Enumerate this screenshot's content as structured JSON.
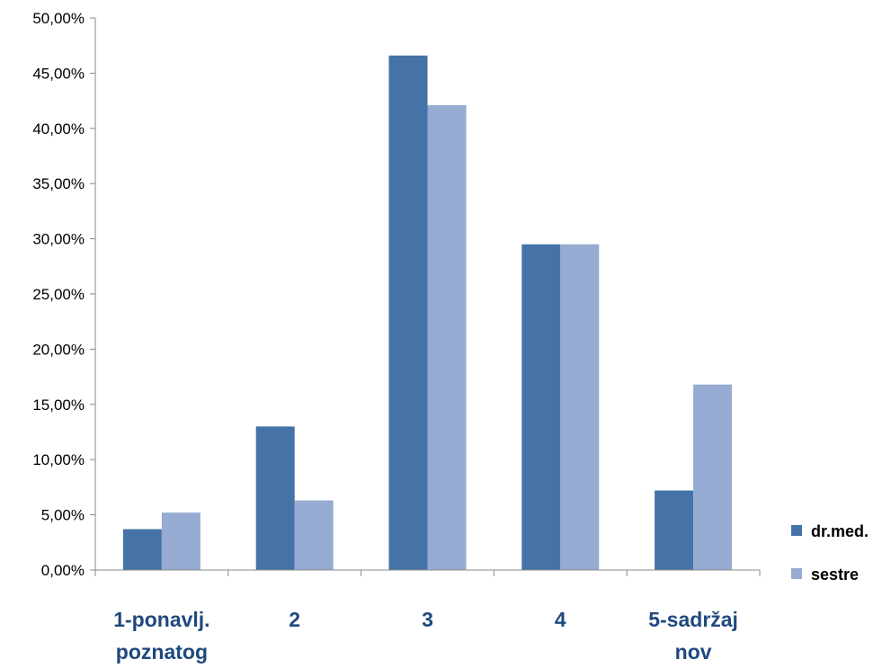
{
  "colors": {
    "series_1": "#4573A7",
    "series_2": "#96ABD2",
    "axis": "#888888",
    "category_text": "#1F497D"
  },
  "chart_data": {
    "type": "bar",
    "categories": [
      [
        "1-ponavlj.",
        "poznatog"
      ],
      [
        "2"
      ],
      [
        "3"
      ],
      [
        "4"
      ],
      [
        "5-sadržaj",
        "nov"
      ]
    ],
    "series": [
      {
        "name": "dr.med.",
        "values": [
          3.7,
          13.0,
          46.6,
          29.5,
          7.2
        ]
      },
      {
        "name": "sestre",
        "values": [
          5.2,
          6.3,
          42.1,
          29.5,
          16.8
        ]
      }
    ],
    "ylim": [
      0,
      50
    ],
    "yticks": [
      0,
      5,
      10,
      15,
      20,
      25,
      30,
      35,
      40,
      45,
      50
    ],
    "ytick_labels": [
      "0,00%",
      "5,00%",
      "10,00%",
      "15,00%",
      "20,00%",
      "25,00%",
      "30,00%",
      "35,00%",
      "40,00%",
      "45,00%",
      "50,00%"
    ],
    "grid": false,
    "legend": "right",
    "title": "",
    "xlabel": "",
    "ylabel": ""
  }
}
